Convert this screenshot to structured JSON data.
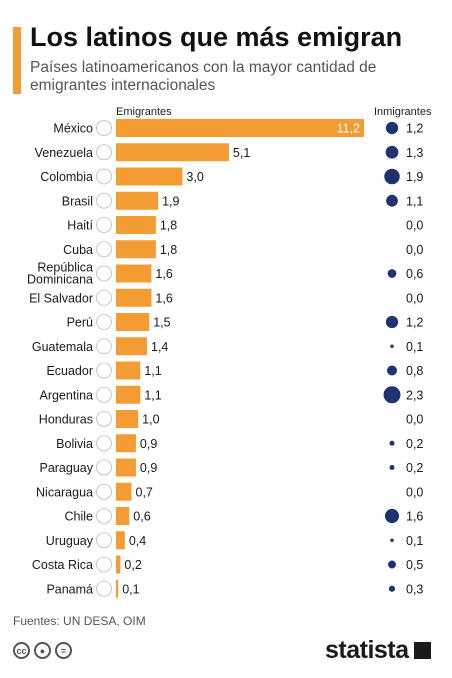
{
  "header": {
    "title": "Los latinos que más emigran",
    "subtitle": "Países latinoamericanos con la mayor cantidad de emigrantes internacionales"
  },
  "colors": {
    "accent": "#f39c33",
    "bar": "#f39c33",
    "bubble": "#1f3370",
    "text": "#1a1a1a"
  },
  "footer": {
    "source": "Fuentes: UN DESA, OIM",
    "brand": "statista",
    "license_icons": [
      "cc-icon",
      "by-icon",
      "nd-icon"
    ]
  },
  "chart_data": {
    "type": "bar",
    "orientation": "horizontal",
    "value_headers": [
      "Emigrantes",
      "Inmigrantes"
    ],
    "categories": [
      "México",
      "Venezuela",
      "Colombia",
      "Brasil",
      "Haití",
      "Cuba",
      "República Dominicana",
      "El Salvador",
      "Perú",
      "Guatemala",
      "Ecuador",
      "Argentina",
      "Honduras",
      "Bolivia",
      "Paraguay",
      "Nicaragua",
      "Chile",
      "Uruguay",
      "Costa Rica",
      "Panamá"
    ],
    "flag_icons": [
      "mexico-flag-icon",
      "venezuela-flag-icon",
      "colombia-flag-icon",
      "brazil-flag-icon",
      "haiti-flag-icon",
      "cuba-flag-icon",
      "dominican-republic-flag-icon",
      "el-salvador-flag-icon",
      "peru-flag-icon",
      "guatemala-flag-icon",
      "ecuador-flag-icon",
      "argentina-flag-icon",
      "honduras-flag-icon",
      "bolivia-flag-icon",
      "paraguay-flag-icon",
      "nicaragua-flag-icon",
      "chile-flag-icon",
      "uruguay-flag-icon",
      "costa-rica-flag-icon",
      "panama-flag-icon"
    ],
    "series": [
      {
        "name": "Emigrantes",
        "mark": "bar",
        "values": [
          11.2,
          5.1,
          3.0,
          1.9,
          1.8,
          1.8,
          1.6,
          1.6,
          1.5,
          1.4,
          1.1,
          1.1,
          1.0,
          0.9,
          0.9,
          0.7,
          0.6,
          0.4,
          0.2,
          0.1
        ],
        "labels": [
          "11,2",
          "5,1",
          "3,0",
          "1,9",
          "1,8",
          "1,8",
          "1,6",
          "1,6",
          "1,5",
          "1,4",
          "1,1",
          "1,1",
          "1,0",
          "0,9",
          "0,9",
          "0,7",
          "0,6",
          "0,4",
          "0,2",
          "0,1"
        ]
      },
      {
        "name": "Inmigrantes",
        "mark": "bubble",
        "values": [
          1.2,
          1.3,
          1.9,
          1.1,
          0.0,
          0.0,
          0.6,
          0.0,
          1.2,
          0.1,
          0.8,
          2.3,
          0.0,
          0.2,
          0.2,
          0.0,
          1.6,
          0.1,
          0.5,
          0.3
        ],
        "labels": [
          "1,2",
          "1,3",
          "1,9",
          "1,1",
          "0,0",
          "0,0",
          "0,6",
          "0,0",
          "1,2",
          "0,1",
          "0,8",
          "2,3",
          "0,0",
          "0,2",
          "0,2",
          "0,0",
          "1,6",
          "0,1",
          "0,5",
          "0,3"
        ]
      }
    ],
    "xlim": [
      0,
      11.2
    ],
    "grid": false,
    "legend": "column-headers"
  }
}
